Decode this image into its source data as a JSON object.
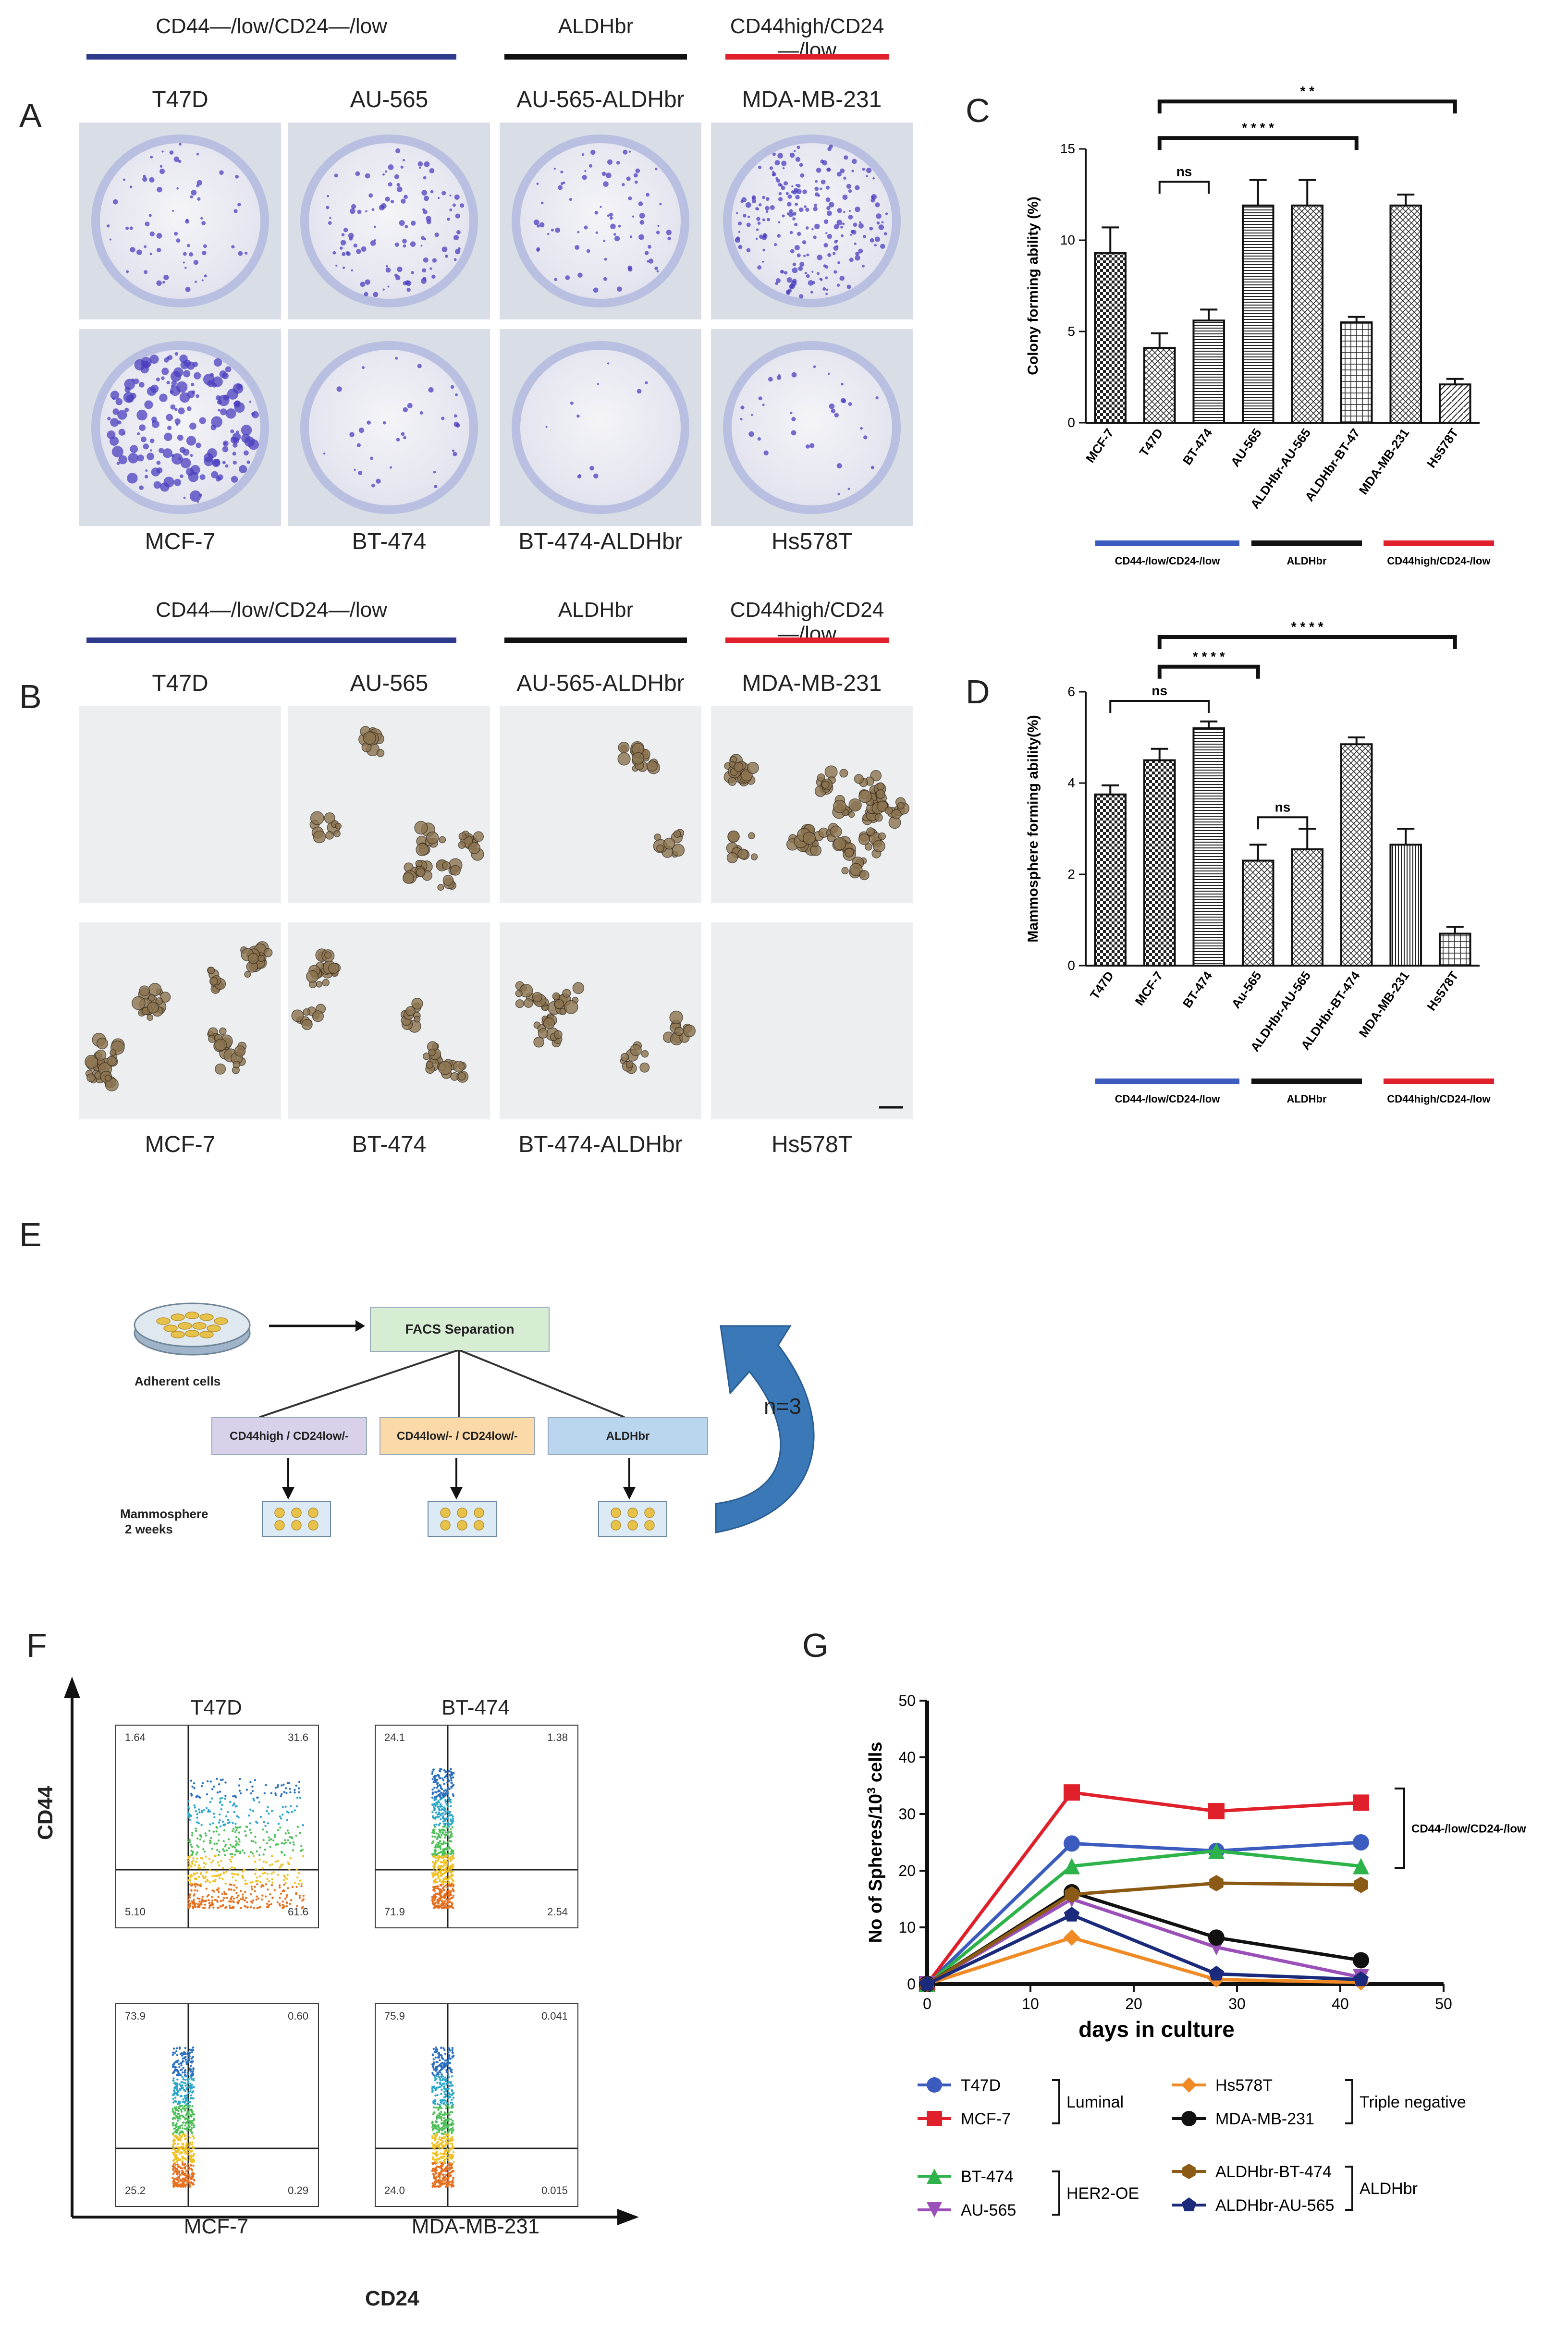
{
  "panelA": {
    "label": "A",
    "groups": [
      "CD44—/low/CD24—/low",
      "ALDHbr",
      "CD44high/CD24—/low"
    ],
    "top_captions": [
      "T47D",
      "AU-565",
      "AU-565-ALDHbr",
      "MDA-MB-231"
    ],
    "bottom_captions": [
      "MCF-7",
      "BT-474",
      "BT-474-ALDHbr",
      "Hs578T"
    ]
  },
  "panelB": {
    "label": "B",
    "groups": [
      "CD44—/low/CD24—/low",
      "ALDHbr",
      "CD44high/CD24—/low"
    ],
    "top_captions": [
      "T47D",
      "AU-565",
      "AU-565-ALDHbr",
      "MDA-MB-231"
    ],
    "bottom_captions": [
      "MCF-7",
      "BT-474",
      "BT-474-ALDHbr",
      "Hs578T"
    ]
  },
  "panelC": {
    "label": "C"
  },
  "panelD": {
    "label": "D"
  },
  "panelE": {
    "label": "E",
    "adherent": "Adherent cells",
    "facs": "FACS Separation",
    "boxes": [
      "CD44high / CD24low/-",
      "CD44low/- / CD24low/-",
      "ALDHbr"
    ],
    "mammo1": "Mammosphere",
    "mammo2": "2 weeks",
    "repeat": "n=3"
  },
  "panelF": {
    "label": "F",
    "yaxis": "CD44",
    "xaxis": "CD24",
    "plots": [
      {
        "name": "T47D",
        "q1": "1.64",
        "q2": "31.6",
        "q3": "61.6",
        "q4": "5.10"
      },
      {
        "name": "BT-474",
        "q1": "24.1",
        "q2": "1.38",
        "q3": "2.54",
        "q4": "71.9"
      },
      {
        "name": "MCF-7",
        "q1": "73.9",
        "q2": "0.60",
        "q3": "0.29",
        "q4": "25.2"
      },
      {
        "name": "MDA-MB-231",
        "q1": "75.9",
        "q2": "0.041",
        "q3": "0.015",
        "q4": "24.0"
      }
    ]
  },
  "panelG": {
    "label": "G"
  },
  "colors": {
    "blue": "#2e3a8c",
    "black": "#111111",
    "red": "#e0202a",
    "legend_blue": "#3b5bbf"
  },
  "chart_data": [
    {
      "type": "bar",
      "panel": "C",
      "ylabel": "Colony forming ability (%)",
      "ylim": [
        0,
        15
      ],
      "yticks": [
        0,
        5,
        10,
        15
      ],
      "categories": [
        "MCF-7",
        "T47D",
        "BT-474",
        "AU-565",
        "ALDHbr-AU-565",
        "ALDHbr-BT-47",
        "MDA-MB-231",
        "Hs578T"
      ],
      "values": [
        9.3,
        4.1,
        5.6,
        11.9,
        11.9,
        5.5,
        11.9,
        2.1
      ],
      "errors": [
        1.4,
        0.8,
        0.6,
        1.4,
        1.4,
        0.3,
        0.6,
        0.3
      ],
      "significance": [
        "ns",
        "* * * *",
        "* *"
      ],
      "group_labels": [
        "CD44-/low/CD24-/low",
        "ALDHbr",
        "CD44high/CD24-/low"
      ]
    },
    {
      "type": "bar",
      "panel": "D",
      "ylabel": "Mammosphere forming ability(%)",
      "ylim": [
        0,
        6
      ],
      "yticks": [
        0,
        2,
        4,
        6
      ],
      "categories": [
        "T47D",
        "MCF-7",
        "BT-474",
        "Au-565",
        "ALDHbr-AU-565",
        "ALDHbr-BT-474",
        "MDA-MB-231",
        "Hs578T"
      ],
      "values": [
        3.75,
        4.5,
        5.2,
        2.3,
        2.55,
        4.85,
        2.65,
        0.7
      ],
      "errors": [
        0.2,
        0.25,
        0.15,
        0.35,
        0.45,
        0.15,
        0.35,
        0.15
      ],
      "significance": [
        "ns",
        "ns",
        "* * * *",
        "* * * *"
      ],
      "group_labels": [
        "CD44-/low/CD24-/low",
        "ALDHbr",
        "CD44high/CD24-/low"
      ]
    },
    {
      "type": "line",
      "panel": "G",
      "xlabel": "days in culture",
      "ylabel": "No of Spheres/10",
      "ylabel_sup": "3",
      "ylabel_tail": " cells",
      "xlim": [
        0,
        50
      ],
      "ylim": [
        0,
        50
      ],
      "xticks": [
        0,
        10,
        20,
        30,
        40,
        50
      ],
      "yticks": [
        0,
        10,
        20,
        30,
        40,
        50
      ],
      "x": [
        0,
        14,
        28,
        42
      ],
      "series": [
        {
          "name": "T47D",
          "color": "#3b5bbf",
          "marker": "circle",
          "values": [
            0,
            24.8,
            23.5,
            25
          ]
        },
        {
          "name": "MCF-7",
          "color": "#e0202a",
          "marker": "square",
          "values": [
            0,
            33.8,
            30.5,
            32
          ]
        },
        {
          "name": "BT-474",
          "color": "#2db34a",
          "marker": "triangle",
          "values": [
            0,
            20.8,
            23.5,
            20.8
          ]
        },
        {
          "name": "AU-565",
          "color": "#9b4fb8",
          "marker": "triangle-down",
          "values": [
            0,
            15,
            6.5,
            1.2
          ]
        },
        {
          "name": "Hs578T",
          "color": "#f08a24",
          "marker": "diamond",
          "values": [
            0,
            8.2,
            0.8,
            0.3
          ]
        },
        {
          "name": "MDA-MB-231",
          "color": "#111111",
          "marker": "circle",
          "values": [
            0,
            16.2,
            8.2,
            4.2
          ]
        },
        {
          "name": "ALDHbr-BT-474",
          "color": "#8b5a14",
          "marker": "hexagon",
          "values": [
            0,
            15.8,
            17.8,
            17.5
          ]
        },
        {
          "name": "ALDHbr-AU-565",
          "color": "#1b2a7a",
          "marker": "pentagon",
          "values": [
            0,
            12.2,
            1.8,
            0.8
          ]
        }
      ],
      "bracket_label": "CD44-/low/CD24-/low",
      "legend_groups": [
        "Luminal",
        "HER2-OE",
        "Triple negative",
        "ALDHbr"
      ]
    }
  ]
}
